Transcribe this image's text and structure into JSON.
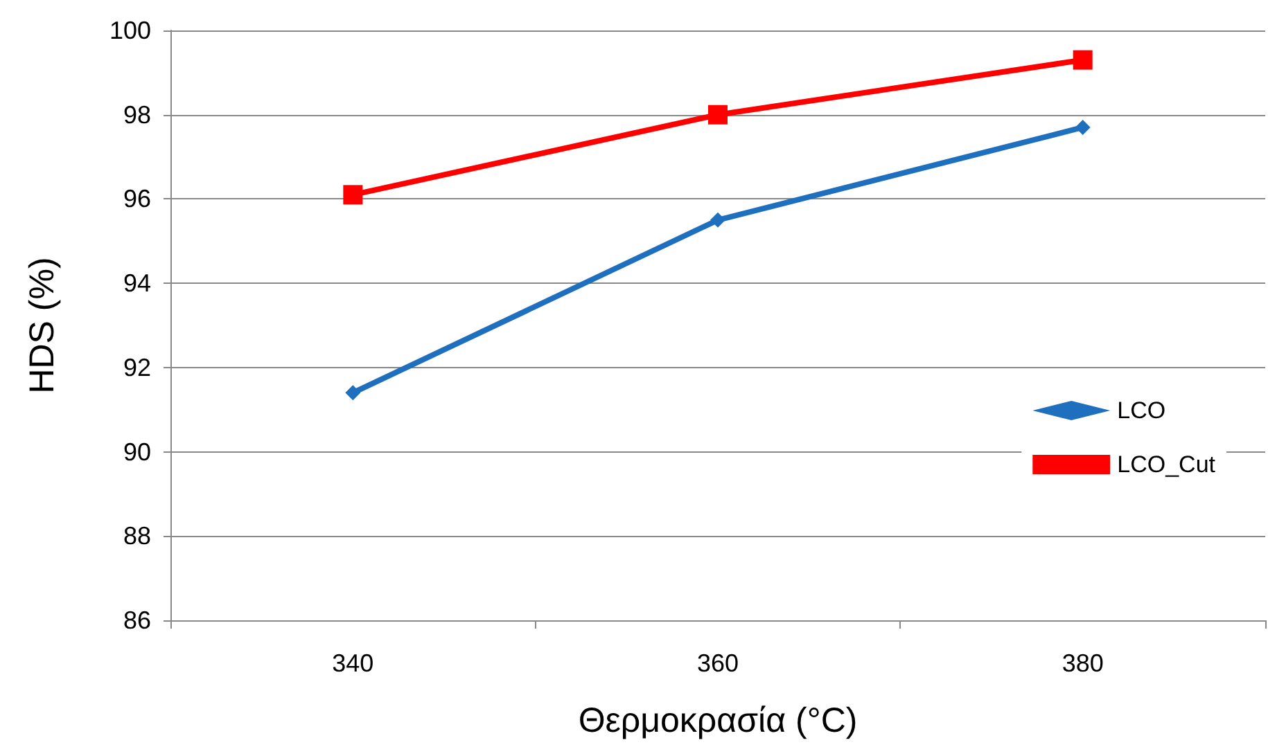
{
  "chart_data": {
    "type": "line",
    "xlabel": "Θερμοκρασία (°C)",
    "ylabel": "HDS (%)",
    "categories": [
      "340",
      "360",
      "380"
    ],
    "series": [
      {
        "name": "LCO",
        "color": "#1f6fbf",
        "marker": "diamond",
        "values": [
          91.4,
          95.5,
          97.7
        ]
      },
      {
        "name": "LCO_Cut",
        "color": "#ff0000",
        "marker": "square",
        "values": [
          96.1,
          98.0,
          99.3
        ]
      }
    ],
    "ylim": [
      86,
      100
    ],
    "yticks": [
      86,
      88,
      90,
      92,
      94,
      96,
      98,
      100
    ],
    "grid": "y",
    "legend": "right",
    "line_style": "solid"
  }
}
